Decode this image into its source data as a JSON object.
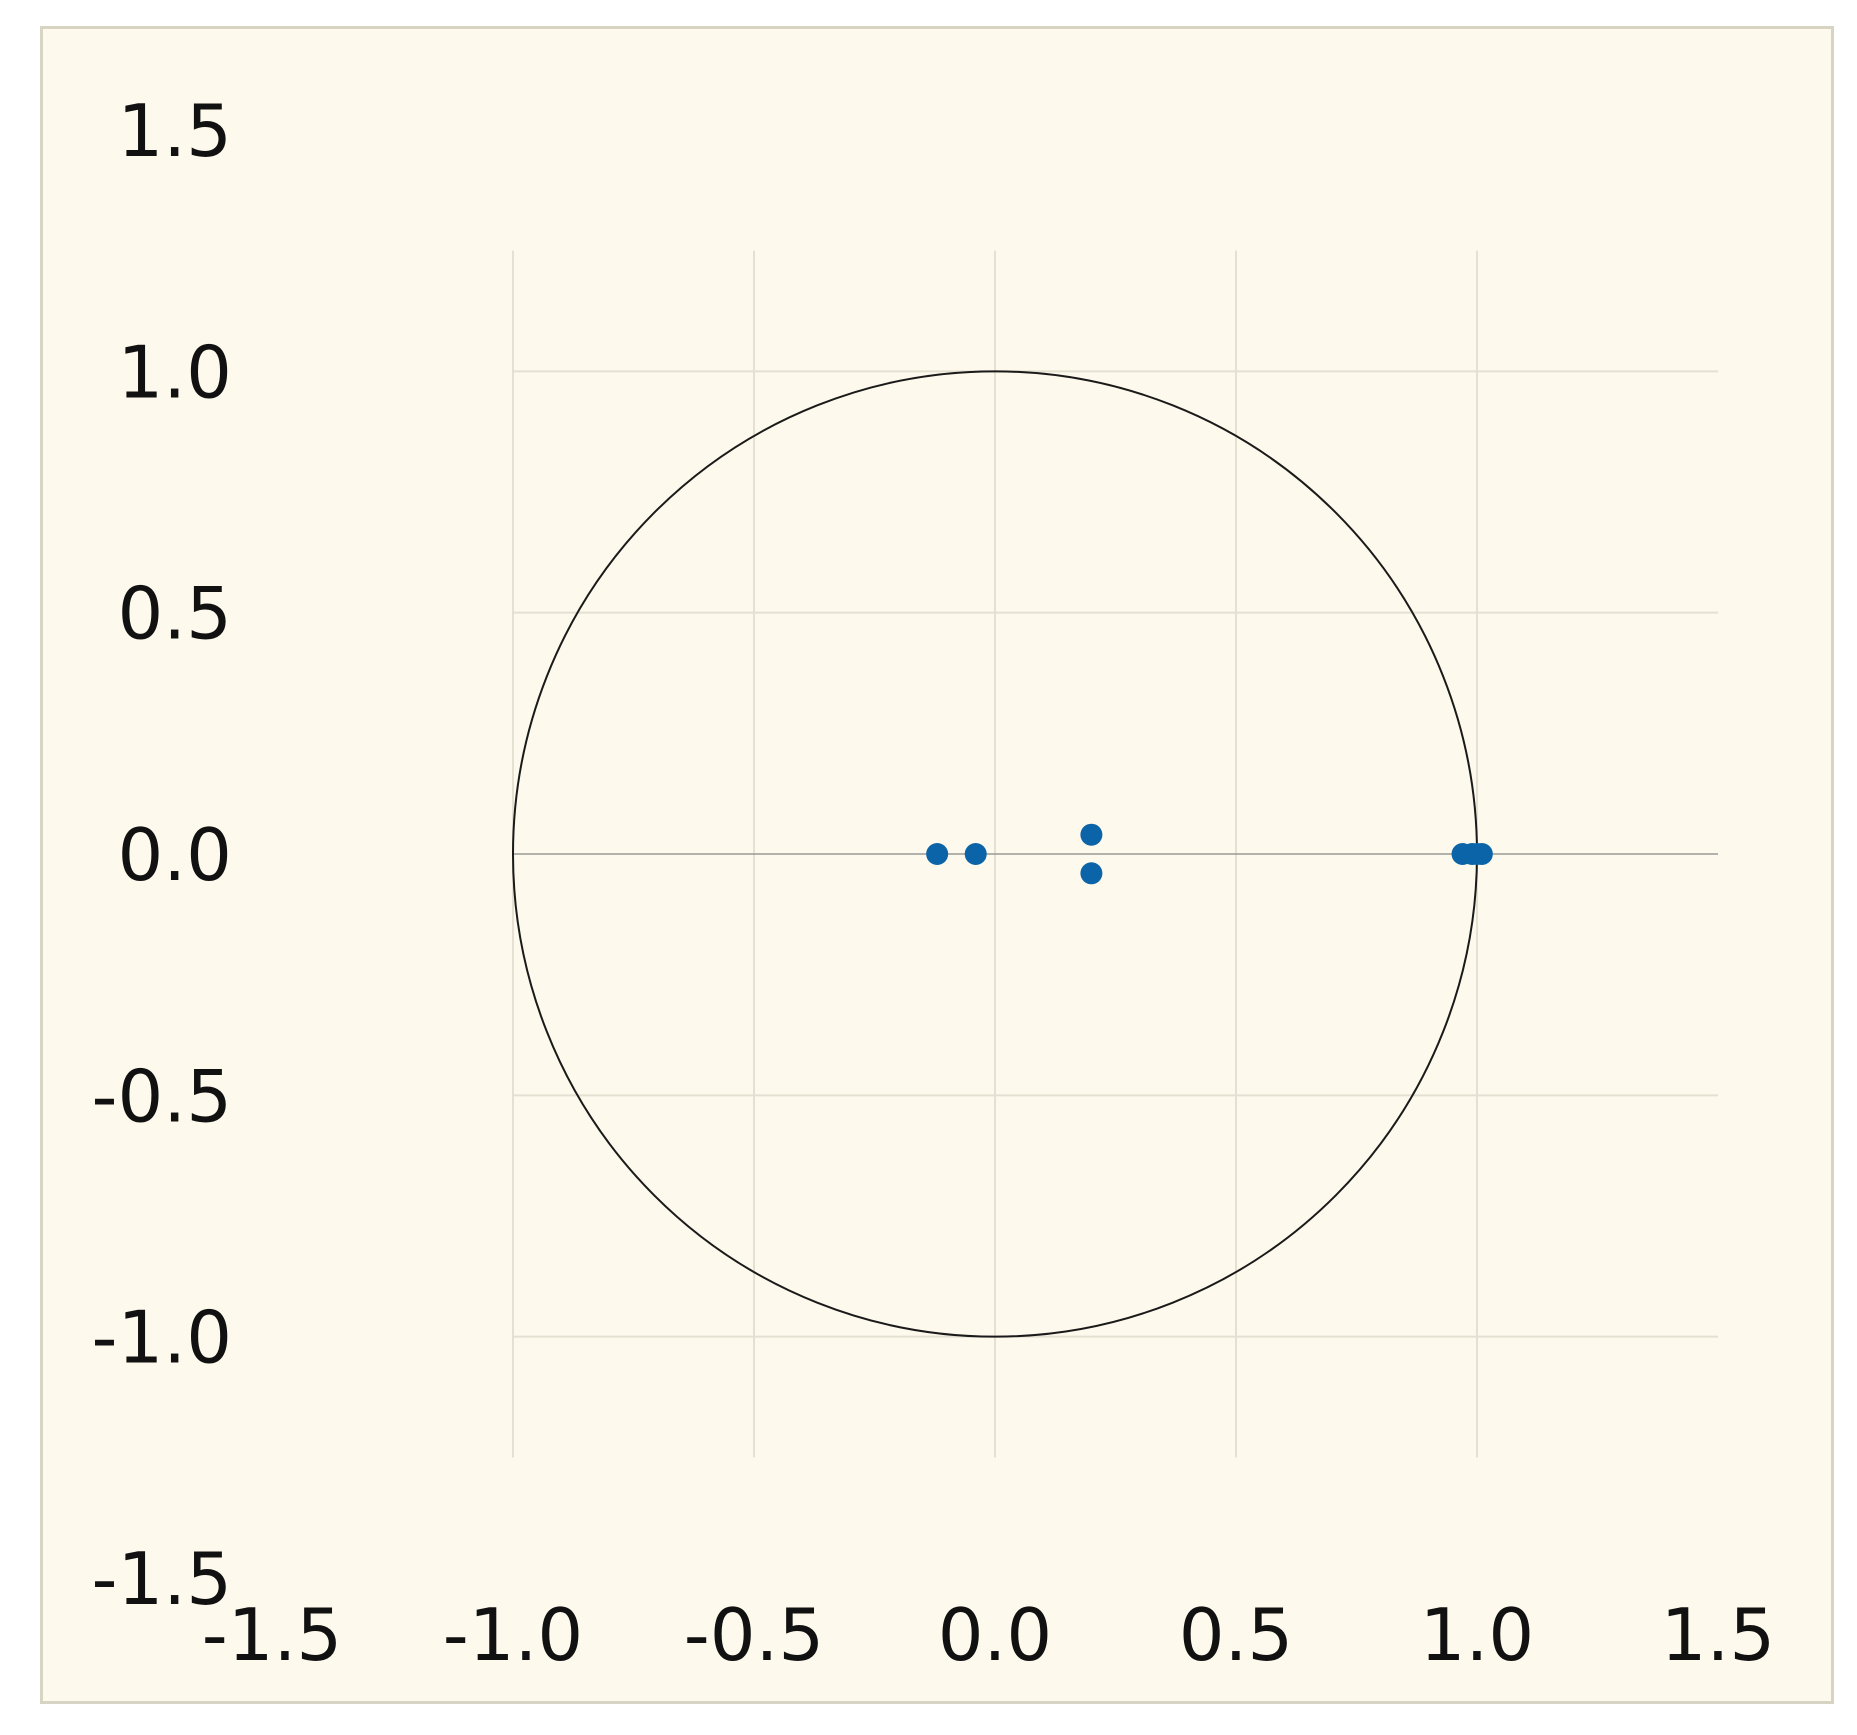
{
  "chart_data": {
    "type": "scatter",
    "title": "",
    "xlabel": "",
    "ylabel": "",
    "xlim": [
      -1.5,
      1.5
    ],
    "ylim": [
      -1.5,
      1.5
    ],
    "x_ticks": [
      "-1.5",
      "-1.0",
      "-0.5",
      "0.0",
      "0.5",
      "1.0",
      "1.5"
    ],
    "y_ticks": [
      "1.5",
      "1.0",
      "0.5",
      "0.0",
      "-0.5",
      "-1.0",
      "-1.5"
    ],
    "grid": true,
    "unit_circle": {
      "center": [
        0,
        0
      ],
      "radius": 1
    },
    "series": [
      {
        "points": [
          {
            "x": -0.12,
            "y": 0.0
          },
          {
            "x": -0.04,
            "y": 0.0
          },
          {
            "x": 0.2,
            "y": 0.04
          },
          {
            "x": 0.2,
            "y": -0.04
          },
          {
            "x": 0.97,
            "y": 0.0
          },
          {
            "x": 0.99,
            "y": 0.0
          },
          {
            "x": 1.0,
            "y": 0.0
          },
          {
            "x": 1.01,
            "y": 0.0
          }
        ]
      }
    ],
    "colors": {
      "background": "#fdf9ec",
      "frame": "#d8d4c4",
      "points": "#0b64a8",
      "circle": "#1a1a1a",
      "grid": "#e4e1d3"
    }
  }
}
